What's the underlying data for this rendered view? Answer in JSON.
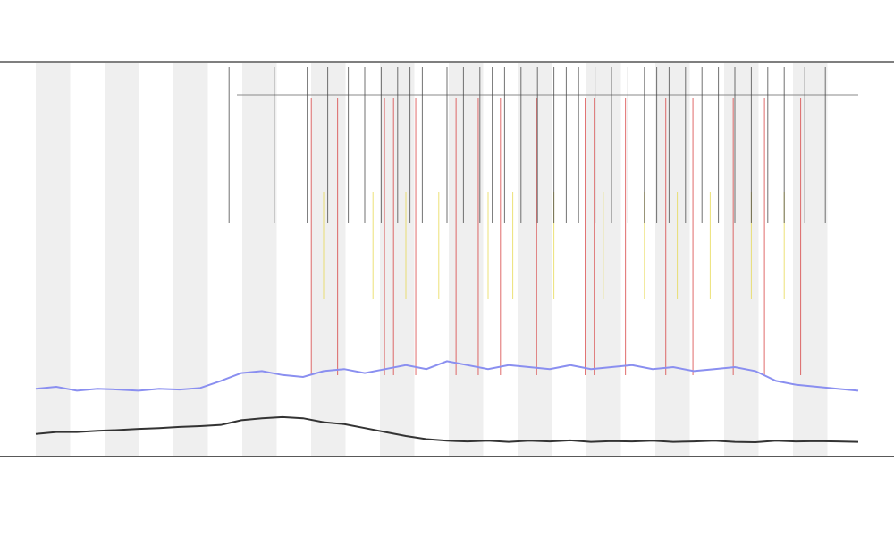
{
  "chart_data": {
    "type": "line",
    "xlim": [
      0,
      100
    ],
    "ylim": [
      0,
      100
    ],
    "x": [
      0,
      2.5,
      5,
      7.5,
      10,
      12.5,
      15,
      17.5,
      20,
      22.5,
      25,
      27.5,
      30,
      32.5,
      35,
      37.5,
      40,
      42.5,
      45,
      47.5,
      50,
      52.5,
      55,
      57.5,
      60,
      62.5,
      65,
      67.5,
      70,
      72.5,
      75,
      77.5,
      80,
      82.5,
      85,
      87.5,
      90,
      92.5,
      95,
      97.5,
      100
    ],
    "series": [
      {
        "color": "#8a8ff0",
        "values": [
          17,
          17.5,
          16.5,
          17,
          16.8,
          16.5,
          17,
          16.8,
          17.2,
          19,
          21,
          21.5,
          20.5,
          20,
          21.5,
          22,
          21,
          22,
          23,
          22,
          24,
          23,
          22,
          23,
          22.5,
          22,
          23,
          22,
          22.5,
          23,
          22,
          22.5,
          21.5,
          22,
          22.5,
          21.5,
          19,
          18,
          17.5,
          17,
          16.5
        ]
      },
      {
        "color": "#333333",
        "values": [
          5.5,
          6,
          6,
          6.3,
          6.5,
          6.8,
          7,
          7.3,
          7.5,
          7.8,
          9,
          9.5,
          9.8,
          9.5,
          8.5,
          8,
          7,
          6,
          5,
          4.2,
          3.8,
          3.6,
          3.8,
          3.5,
          3.8,
          3.6,
          3.9,
          3.5,
          3.7,
          3.6,
          3.8,
          3.5,
          3.6,
          3.8,
          3.5,
          3.4,
          3.8,
          3.6,
          3.7,
          3.6,
          3.5
        ]
      }
    ],
    "markers": [
      {
        "color": "#d63a3a",
        "x": [
          33.5,
          36.7,
          42.4,
          43.5,
          46.2,
          51.1,
          53.8,
          56.5,
          60.9,
          66.8,
          67.9,
          71.7,
          76.6,
          79.9,
          84.8,
          88.6,
          93
        ]
      },
      {
        "color": "#e6d84a",
        "x": [
          35,
          41,
          45,
          49,
          55,
          58,
          63,
          69,
          74,
          78,
          82,
          87,
          91
        ]
      },
      {
        "color": "#444444",
        "x": [
          23.5,
          29,
          33,
          35.5,
          38,
          40,
          42,
          44,
          45.5,
          47,
          50,
          52,
          54,
          55.5,
          57,
          59,
          61,
          63,
          64.5,
          66,
          68,
          70,
          72,
          74,
          75.5,
          77,
          79,
          81,
          83,
          85,
          87,
          89,
          91,
          93.5,
          96
        ]
      }
    ]
  }
}
